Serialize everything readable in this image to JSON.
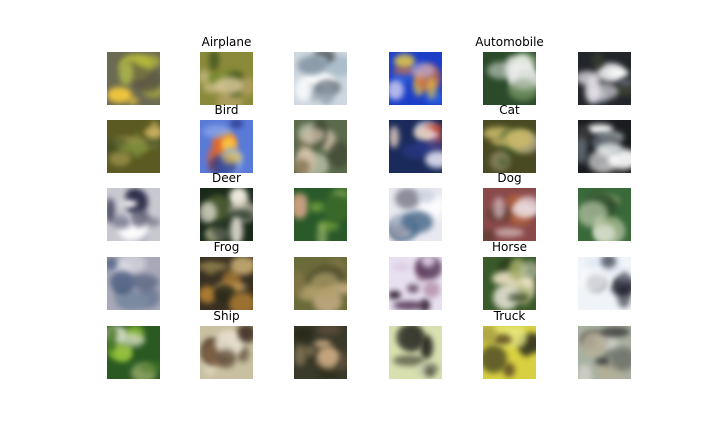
{
  "grid": {
    "rows": 5,
    "cols": 6,
    "labels": [
      {
        "text": "Airplane",
        "row": 0,
        "col": 1
      },
      {
        "text": "Automobile",
        "row": 0,
        "col": 4
      },
      {
        "text": "Bird",
        "row": 1,
        "col": 1
      },
      {
        "text": "Cat",
        "row": 1,
        "col": 4
      },
      {
        "text": "Deer",
        "row": 2,
        "col": 1
      },
      {
        "text": "Dog",
        "row": 2,
        "col": 4
      },
      {
        "text": "Frog",
        "row": 3,
        "col": 1
      },
      {
        "text": "Horse",
        "row": 3,
        "col": 4
      },
      {
        "text": "Ship",
        "row": 4,
        "col": 1
      },
      {
        "text": "Truck",
        "row": 4,
        "col": 4
      }
    ],
    "tiles": [
      [
        "#6b6a52",
        "#b9bd3a",
        "#5e5a44",
        "#a8b04c",
        "#ffd23a"
      ],
      [
        "#8a8a3a",
        "#d9c89a",
        "#6e8a2e",
        "#b0a060",
        "#4a5a22"
      ],
      [
        "#cfd8e0",
        "#8a9aa8",
        "#ffffff",
        "#3a3f44",
        "#9ab0c0"
      ],
      [
        "#1c3fc8",
        "#f0d040",
        "#2a60e0",
        "#e06a30",
        "#c8c8f0"
      ],
      [
        "#2a4a2a",
        "#f0f0f0",
        "#ffffff",
        "#6a8a5a",
        "#c8d0c8"
      ],
      [
        "#22252a",
        "#ece8f0",
        "#ffffff",
        "#3a4030",
        "#707880"
      ],
      [
        "#5a5a22",
        "#c8b060",
        "#7a8a3a",
        "#3a4a22",
        "#a89a50"
      ],
      [
        "#5a7ad8",
        "#ffd040",
        "#e0602a",
        "#88a8e8",
        "#2a3a88"
      ],
      [
        "#5a6a4a",
        "#d0c0a8",
        "#8a7a5a",
        "#b0b8a0",
        "#3a4030"
      ],
      [
        "#1a2a5a",
        "#f0f0ff",
        "#c03a2a",
        "#2a3a8a",
        "#e8d0c0"
      ],
      [
        "#4a4a22",
        "#c8b86a",
        "#7a7a3a",
        "#3a5a2a",
        "#a8a080"
      ],
      [
        "#1a1c20",
        "#ffffff",
        "#d0d8d8",
        "#3a3a3a",
        "#606870"
      ],
      [
        "#c8c8d0",
        "#2a2a48",
        "#ffffff",
        "#5a5a70",
        "#8a8aa0"
      ],
      [
        "#1a2a1a",
        "#f0ece0",
        "#5a6a3a",
        "#c8c0b0",
        "#2a3a2a"
      ],
      [
        "#2a5a2a",
        "#6a9a3a",
        "#c8a080",
        "#3a6a2a",
        "#a8c070"
      ],
      [
        "#e8e8f0",
        "#8a8a98",
        "#ffffff",
        "#4a6a8a",
        "#c0c8d8"
      ],
      [
        "#8a4a4a",
        "#e8d8d8",
        "#c06a3a",
        "#5a3a30",
        "#f0e0e8"
      ],
      [
        "#3a6a3a",
        "#d8e0d0",
        "#8aa06a",
        "#2a4a2a",
        "#b0c0a0"
      ],
      [
        "#a8a8b8",
        "#5a6a8a",
        "#e0e0e8",
        "#7a8aa0",
        "#3a4a6a"
      ],
      [
        "#3a3022",
        "#d89a3a",
        "#8a7a4a",
        "#e0c080",
        "#2a2a1a"
      ],
      [
        "#6a6a3a",
        "#b0a06a",
        "#8a7a4a",
        "#4a4a2a",
        "#c0a880"
      ],
      [
        "#e8e0f0",
        "#4a2a4a",
        "#a8809a",
        "#2a1a2a",
        "#d8c8e0"
      ],
      [
        "#3a5a2a",
        "#e8e0c0",
        "#2a3a1a",
        "#a8b06a",
        "#d8d8c8"
      ],
      [
        "#f0f4f8",
        "#1a1a28",
        "#d8e0f0",
        "#6a7080",
        "#ffffff"
      ],
      [
        "#2a5a22",
        "#9ac83a",
        "#d8e0c8",
        "#4a7a2a",
        "#88a060"
      ],
      [
        "#c8c0a0",
        "#3a2a22",
        "#8a6a4a",
        "#e8e0d0",
        "#5a4a3a"
      ],
      [
        "#3a3a2a",
        "#c8a880",
        "#5a4a3a",
        "#8a7a5a",
        "#2a2a1a"
      ],
      [
        "#d8e0b0",
        "#2a2a22",
        "#8a8a70",
        "#c0c8b0",
        "#4a4a3a"
      ],
      [
        "#d8d040",
        "#3a3a22",
        "#e8e880",
        "#6a5a2a",
        "#a8a040"
      ],
      [
        "#a8b0a0",
        "#3a3a3a",
        "#d0d0c8",
        "#6a7068",
        "#b8b098"
      ]
    ]
  }
}
